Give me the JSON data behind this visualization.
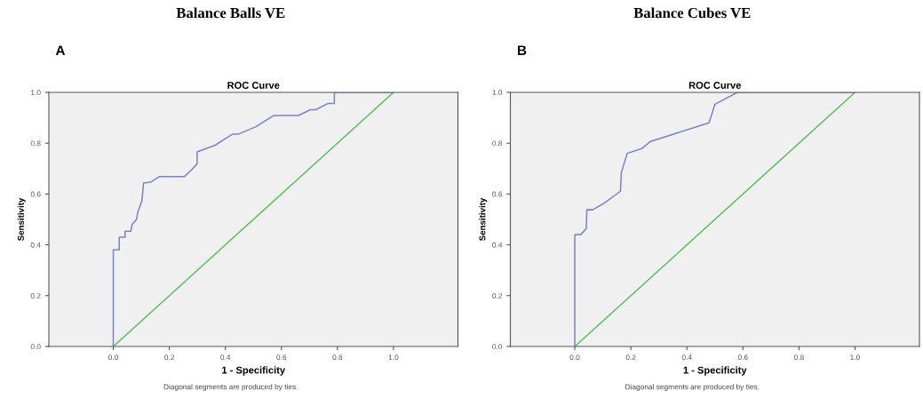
{
  "chart_data": [
    {
      "type": "line",
      "title": "Balance Balls VE",
      "subtitle": "ROC Curve",
      "xlabel": "1 - Specificity",
      "ylabel": "Sensitivity",
      "annotations": [
        "A",
        "Diagonal segments are produced by ties."
      ],
      "xlim": [
        -0.23,
        1.23
      ],
      "ylim": [
        0,
        1
      ],
      "xticks": [
        {
          "value": 0,
          "label": "0.0"
        },
        {
          "value": 0.2,
          "label": "0.2"
        },
        {
          "value": 0.4,
          "label": "0.4"
        },
        {
          "value": 0.6,
          "label": "0.6"
        },
        {
          "value": 0.8,
          "label": "0.8"
        },
        {
          "value": 1,
          "label": "1.0"
        }
      ],
      "yticks": [
        {
          "value": 0,
          "label": "0.0"
        },
        {
          "value": 0.2,
          "label": "0.2"
        },
        {
          "value": 0.4,
          "label": "0.4"
        },
        {
          "value": 0.6,
          "label": "0.6"
        },
        {
          "value": 0.8,
          "label": "0.8"
        },
        {
          "value": 1,
          "label": "1.0"
        }
      ],
      "grid": false,
      "marker": "none",
      "line_style": "solid",
      "series": [
        {
          "color": "#7b83c4",
          "x": [
            0,
            0,
            0.021,
            0.021,
            0.042,
            0.042,
            0.063,
            0.067,
            0.083,
            0.087,
            0.102,
            0.108,
            0.134,
            0.165,
            0.254,
            0.28,
            0.299,
            0.299,
            0.363,
            0.426,
            0.447,
            0.509,
            0.572,
            0.661,
            0.703,
            0.723,
            0.765,
            0.789,
            0.789,
            1
          ],
          "values": [
            0,
            0.38,
            0.38,
            0.43,
            0.43,
            0.454,
            0.454,
            0.48,
            0.5,
            0.527,
            0.573,
            0.643,
            0.647,
            0.669,
            0.669,
            0.696,
            0.719,
            0.766,
            0.792,
            0.836,
            0.836,
            0.865,
            0.909,
            0.909,
            0.932,
            0.932,
            0.956,
            0.956,
            1,
            1
          ]
        },
        {
          "color": "#5cc05c",
          "x": [
            0,
            1
          ],
          "values": [
            0,
            1
          ]
        }
      ]
    },
    {
      "type": "line",
      "title": "Balance Cubes VE",
      "subtitle": "ROC Curve",
      "xlabel": "1 - Specificity",
      "ylabel": "Sensitivity",
      "annotations": [
        "B",
        "Diagonal segments are produced by ties."
      ],
      "xlim": [
        -0.23,
        1.23
      ],
      "ylim": [
        0,
        1
      ],
      "xticks": [
        {
          "value": 0,
          "label": "0.0"
        },
        {
          "value": 0.2,
          "label": "0.2"
        },
        {
          "value": 0.4,
          "label": "0.4"
        },
        {
          "value": 0.6,
          "label": "0.6"
        },
        {
          "value": 0.8,
          "label": "0.8"
        },
        {
          "value": 1,
          "label": "1.0"
        }
      ],
      "yticks": [
        {
          "value": 0,
          "label": "0.0"
        },
        {
          "value": 0.2,
          "label": "0.2"
        },
        {
          "value": 0.4,
          "label": "0.4"
        },
        {
          "value": 0.6,
          "label": "0.6"
        },
        {
          "value": 0.8,
          "label": "0.8"
        },
        {
          "value": 1,
          "label": "1.0"
        }
      ],
      "grid": false,
      "marker": "none",
      "line_style": "solid",
      "series": [
        {
          "color": "#7b83c4",
          "x": [
            0,
            0,
            0.022,
            0.041,
            0.043,
            0.064,
            0.105,
            0.163,
            0.166,
            0.187,
            0.241,
            0.27,
            0.479,
            0.5,
            0.58,
            1
          ],
          "values": [
            0,
            0.44,
            0.441,
            0.464,
            0.538,
            0.538,
            0.564,
            0.611,
            0.684,
            0.76,
            0.78,
            0.807,
            0.88,
            0.953,
            1,
            1
          ]
        },
        {
          "color": "#5cc05c",
          "x": [
            0,
            1
          ],
          "values": [
            0,
            1
          ]
        }
      ]
    }
  ]
}
